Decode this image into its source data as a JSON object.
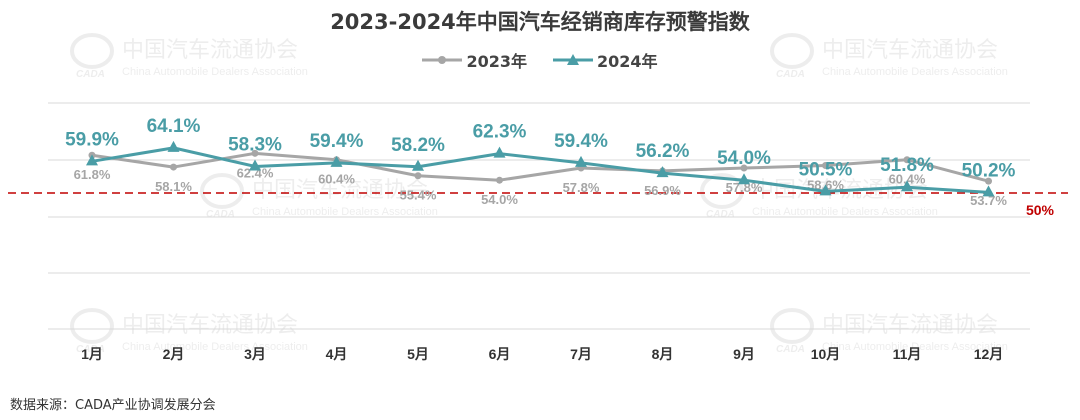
{
  "chart_data": {
    "type": "line",
    "title": "2023-2024年中国汽车经销商库存预警指数",
    "categories": [
      "1月",
      "2月",
      "3月",
      "4月",
      "5月",
      "6月",
      "7月",
      "8月",
      "9月",
      "10月",
      "11月",
      "12月"
    ],
    "series": [
      {
        "name": "2023年",
        "color": "#a6a6a6",
        "marker": "circle",
        "values": [
          61.8,
          58.1,
          62.4,
          60.4,
          55.4,
          54.0,
          57.8,
          56.9,
          57.8,
          58.6,
          60.4,
          53.7
        ],
        "labels": [
          "61.8%",
          "58.1%",
          "62.4%",
          "60.4%",
          "55.4%",
          "54.0%",
          "57.8%",
          "56.9%",
          "57.8%",
          "58.6%",
          "60.4%",
          "53.7%"
        ]
      },
      {
        "name": "2024年",
        "color": "#4a9da6",
        "marker": "triangle",
        "values": [
          59.9,
          64.1,
          58.3,
          59.4,
          58.2,
          62.3,
          59.4,
          56.2,
          54.0,
          50.5,
          51.8,
          50.2
        ],
        "labels": [
          "59.9%",
          "64.1%",
          "58.3%",
          "59.4%",
          "58.2%",
          "62.3%",
          "59.4%",
          "56.2%",
          "54.0%",
          "50.5%",
          "51.8%",
          "50.2%"
        ]
      }
    ],
    "reference_line": {
      "value": 50,
      "label": "50%",
      "color": "#c00000",
      "style": "dashed"
    },
    "grid": true,
    "legend_position": "top-center"
  },
  "watermark": {
    "zh": "中国汽车流通协会",
    "en": "China Automobile Dealers Association",
    "logo_text": "CADA"
  },
  "source": "数据来源：CADA产业协调发展分会"
}
